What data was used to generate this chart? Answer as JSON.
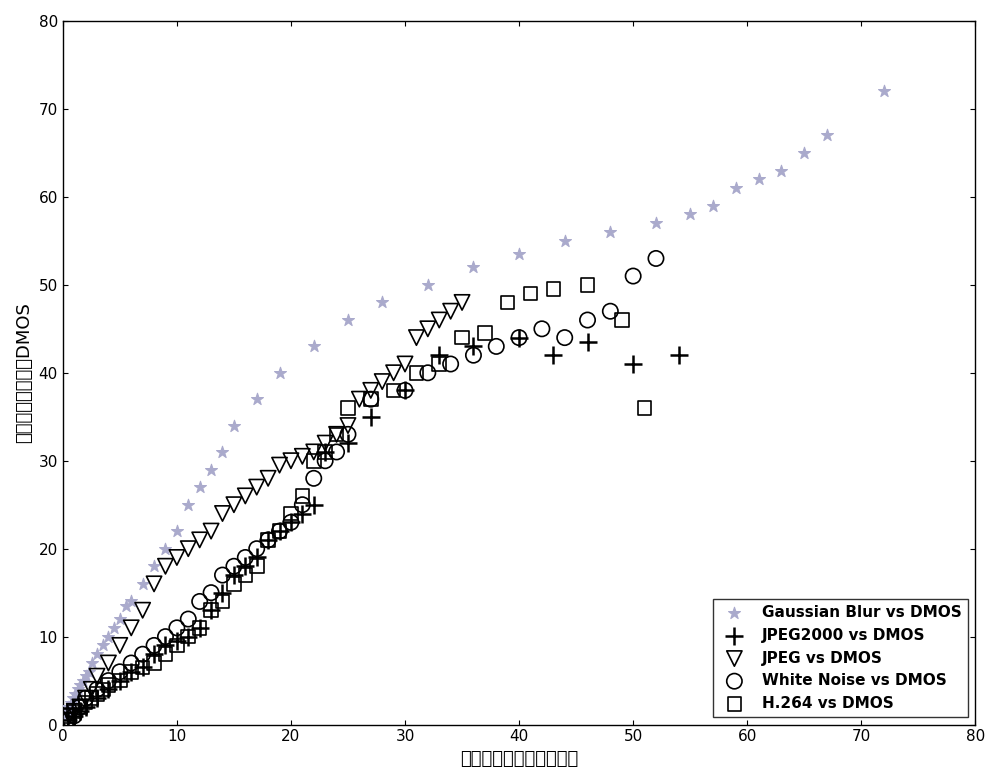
{
  "gaussian_blur": {
    "x": [
      0.2,
      0.3,
      0.5,
      0.7,
      0.9,
      1.1,
      1.3,
      1.5,
      1.8,
      2.0,
      2.3,
      2.6,
      3.0,
      3.5,
      4.0,
      4.5,
      5.0,
      5.5,
      6.0,
      7.0,
      8.0,
      9.0,
      10.0,
      11.0,
      12.0,
      13.0,
      14.0,
      15.0,
      17.0,
      19.0,
      22.0,
      25.0,
      28.0,
      32.0,
      36.0,
      40.0,
      44.0,
      48.0,
      52.0,
      55.0,
      57.0,
      59.0,
      61.0,
      63.0,
      65.0,
      67.0,
      72.0
    ],
    "y": [
      1.0,
      1.5,
      2.0,
      2.5,
      3.0,
      3.5,
      4.0,
      4.5,
      5.0,
      5.5,
      6.0,
      7.0,
      8.0,
      9.0,
      10.0,
      11.0,
      12.0,
      13.5,
      14.0,
      16.0,
      18.0,
      20.0,
      22.0,
      25.0,
      27.0,
      29.0,
      31.0,
      34.0,
      37.0,
      40.0,
      43.0,
      46.0,
      48.0,
      50.0,
      52.0,
      53.5,
      55.0,
      56.0,
      57.0,
      58.0,
      59.0,
      61.0,
      62.0,
      63.0,
      65.0,
      67.0,
      72.0
    ],
    "color": "#aaaacc",
    "marker": "*",
    "label": "Gaussian Blur vs DMOS",
    "markersize": 9
  },
  "jpeg2000": {
    "x": [
      0.5,
      1.0,
      1.5,
      2.0,
      3.0,
      4.0,
      5.0,
      6.0,
      7.0,
      8.0,
      9.0,
      10.0,
      11.0,
      12.0,
      13.0,
      14.0,
      15.0,
      16.0,
      17.0,
      18.0,
      19.0,
      20.0,
      21.0,
      22.0,
      23.0,
      25.0,
      27.0,
      30.0,
      33.0,
      36.0,
      40.0,
      43.0,
      46.0,
      50.0,
      54.0
    ],
    "y": [
      0.5,
      1.0,
      1.5,
      2.0,
      3.0,
      4.0,
      5.0,
      6.0,
      6.5,
      8.0,
      9.0,
      9.5,
      10.0,
      11.0,
      13.0,
      15.0,
      17.0,
      18.0,
      19.0,
      21.0,
      22.0,
      23.0,
      24.0,
      25.0,
      31.0,
      32.0,
      35.0,
      38.0,
      42.0,
      43.0,
      44.0,
      42.0,
      43.5,
      41.0,
      42.0
    ],
    "color": "#000000",
    "marker": "+",
    "label": "JPEG2000 vs DMOS",
    "markersize": 9
  },
  "jpeg": {
    "x": [
      0.3,
      0.6,
      1.0,
      1.5,
      2.0,
      2.5,
      3.0,
      4.0,
      5.0,
      6.0,
      7.0,
      8.0,
      9.0,
      10.0,
      11.0,
      12.0,
      13.0,
      14.0,
      15.0,
      16.0,
      17.0,
      18.0,
      19.0,
      20.0,
      21.0,
      22.0,
      23.0,
      24.0,
      25.0,
      26.0,
      27.0,
      28.0,
      29.0,
      30.0,
      31.0,
      32.0,
      33.0,
      34.0,
      35.0
    ],
    "y": [
      0.5,
      1.0,
      1.5,
      2.0,
      3.0,
      4.0,
      5.5,
      7.0,
      9.0,
      11.0,
      13.0,
      16.0,
      18.0,
      19.0,
      20.0,
      21.0,
      22.0,
      24.0,
      25.0,
      26.0,
      27.0,
      28.0,
      29.5,
      30.0,
      30.5,
      31.0,
      32.0,
      33.0,
      34.0,
      37.0,
      38.0,
      39.0,
      40.0,
      41.0,
      44.0,
      45.0,
      46.0,
      47.0,
      48.0
    ],
    "color": "#000000",
    "marker": "v",
    "label": "JPEG vs DMOS",
    "markersize": 9
  },
  "white_noise": {
    "x": [
      0.5,
      1.0,
      1.5,
      2.0,
      3.0,
      4.0,
      5.0,
      6.0,
      7.0,
      8.0,
      9.0,
      10.0,
      11.0,
      12.0,
      13.0,
      14.0,
      15.0,
      16.0,
      17.0,
      18.0,
      19.0,
      20.0,
      21.0,
      22.0,
      23.0,
      24.0,
      25.0,
      27.0,
      30.0,
      32.0,
      34.0,
      36.0,
      38.0,
      40.0,
      42.0,
      44.0,
      46.0,
      48.0,
      50.0,
      52.0
    ],
    "y": [
      0.5,
      1.0,
      2.0,
      3.0,
      4.0,
      5.0,
      6.0,
      7.0,
      8.0,
      9.0,
      10.0,
      11.0,
      12.0,
      14.0,
      15.0,
      17.0,
      18.0,
      19.0,
      20.0,
      21.0,
      22.0,
      23.0,
      25.0,
      28.0,
      30.0,
      31.0,
      33.0,
      37.0,
      38.0,
      40.0,
      41.0,
      42.0,
      43.0,
      44.0,
      45.0,
      44.0,
      46.0,
      47.0,
      51.0,
      53.0
    ],
    "color": "#000000",
    "marker": "o",
    "label": "White Noise vs DMOS",
    "markersize": 9
  },
  "h264": {
    "x": [
      0.3,
      0.6,
      1.0,
      1.5,
      2.0,
      2.5,
      3.0,
      3.5,
      4.0,
      5.0,
      6.0,
      7.0,
      8.0,
      9.0,
      10.0,
      11.0,
      12.0,
      13.0,
      14.0,
      15.0,
      16.0,
      17.0,
      18.0,
      19.0,
      20.0,
      21.0,
      22.0,
      23.0,
      24.0,
      25.0,
      27.0,
      29.0,
      31.0,
      33.0,
      35.0,
      37.0,
      39.0,
      41.0,
      43.0,
      46.0,
      49.0,
      51.0
    ],
    "y": [
      0.5,
      1.0,
      1.5,
      2.0,
      2.5,
      3.0,
      3.5,
      4.0,
      4.5,
      5.0,
      6.0,
      6.5,
      7.0,
      8.0,
      9.0,
      10.0,
      11.0,
      13.0,
      14.0,
      16.0,
      17.0,
      18.0,
      21.0,
      22.0,
      24.0,
      26.0,
      30.0,
      31.0,
      33.0,
      36.0,
      37.0,
      38.0,
      40.0,
      41.0,
      44.0,
      44.5,
      48.0,
      49.0,
      49.5,
      50.0,
      46.0,
      36.0
    ],
    "color": "#000000",
    "marker": "s",
    "label": "H.264 vs DMOS",
    "markersize": 8
  },
  "xlabel": "客观图像质量评价预测値",
  "ylabel": "平均主观评分差値DMOS",
  "xlim": [
    0,
    80
  ],
  "ylim": [
    0,
    80
  ],
  "xticks": [
    0,
    10,
    20,
    30,
    40,
    50,
    60,
    70,
    80
  ],
  "yticks": [
    0,
    10,
    20,
    30,
    40,
    50,
    60,
    70,
    80
  ],
  "background_color": "#ffffff",
  "legend_fontsize": 11,
  "axis_fontsize": 13
}
